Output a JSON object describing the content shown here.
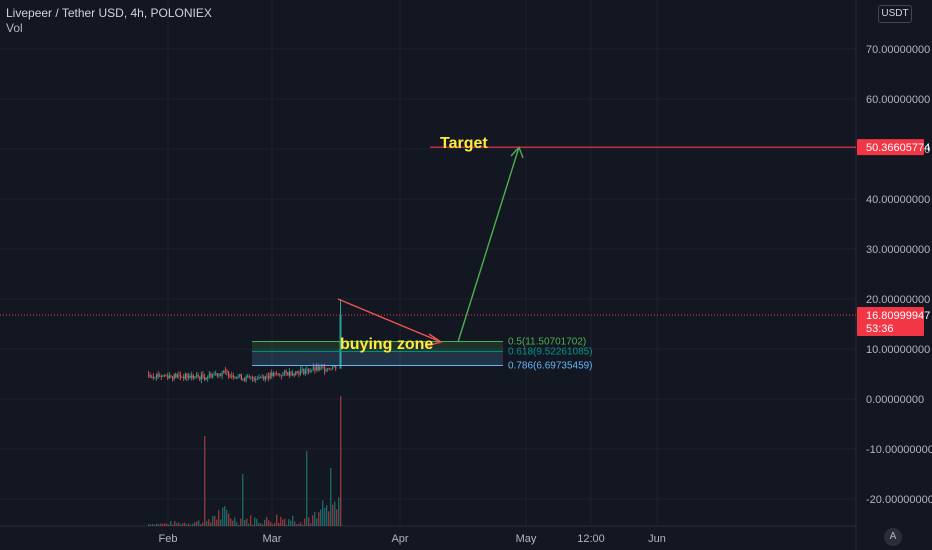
{
  "header": {
    "symbol": "Livepeer / Tether USD, 4h, POLONIEX",
    "indicator": "Vol",
    "currency": "USDT",
    "axis_logo": "A"
  },
  "colors": {
    "background": "#131722",
    "grid": "#1e222d",
    "up": "#26a69a",
    "down": "#ef5350",
    "price_line": "#f23645",
    "target_arrow": "#4caf50",
    "annotation_text": "#ffeb3b",
    "fib_05": "#4caf50",
    "fib_0618": "#009688",
    "fib_0786": "#64b5f6"
  },
  "chart_data": {
    "type": "candlestick",
    "x_ticks": [
      "Feb",
      "Mar",
      "Apr",
      "May",
      "12:00",
      "Jun"
    ],
    "y_ticks": [
      {
        "value": 70,
        "label": "70.00000000"
      },
      {
        "value": 60,
        "label": "60.00000000"
      },
      {
        "value": 50,
        "label": "50.00000000"
      },
      {
        "value": 40,
        "label": "40.00000000"
      },
      {
        "value": 30,
        "label": "30.00000000"
      },
      {
        "value": 20,
        "label": "20.00000000"
      },
      {
        "value": 10,
        "label": "10.00000000"
      },
      {
        "value": 0,
        "label": "0.00000000"
      },
      {
        "value": -10,
        "label": "-10.00000000"
      },
      {
        "value": -20,
        "label": "-20.00000000"
      }
    ],
    "ylim": [
      -25,
      77
    ],
    "last_price": {
      "value": 16.80999947,
      "label": "16.80999947",
      "countdown": "53:36"
    },
    "target": {
      "value": 50.36605774,
      "label": "50.36605774",
      "text": "Target"
    },
    "buying_zone_label": "buying zone",
    "fib_levels": [
      {
        "ratio": "0.5",
        "value": 11.50701702,
        "label": "0.5(11.50701702)"
      },
      {
        "ratio": "0.618",
        "value": 9.52261085,
        "label": "0.618(9.52261085)"
      },
      {
        "ratio": "0.786",
        "value": 6.69735459,
        "label": "0.786(6.69735459)"
      }
    ],
    "price_path_levels": {
      "feb_start": 4.8,
      "mar_start": 4.2,
      "pre_pump": 6.5,
      "pump_high": 20,
      "pump_close": 16.8
    },
    "volume_peaks": [
      2,
      3.5,
      5,
      17,
      9,
      8,
      11,
      12,
      26
    ]
  }
}
